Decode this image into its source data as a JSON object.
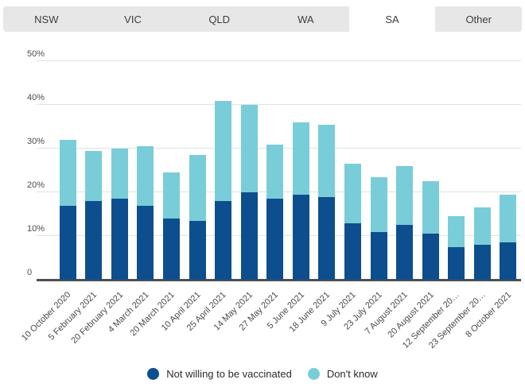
{
  "tabs": {
    "items": [
      {
        "label": "NSW",
        "active": false
      },
      {
        "label": "VIC",
        "active": false
      },
      {
        "label": "QLD",
        "active": false
      },
      {
        "label": "WA",
        "active": false
      },
      {
        "label": "SA",
        "active": true
      },
      {
        "label": "Other",
        "active": false
      }
    ]
  },
  "chart_data": {
    "type": "bar",
    "stacked": true,
    "categories": [
      "10 October 2020",
      "5 February 2021",
      "20 February 2021",
      "4 March 2021",
      "20 March 2021",
      "10 April 2021",
      "25 April 2021",
      "14 May 2021",
      "27 May 2021",
      "5 June 2021",
      "18 June 2021",
      "9 July 2021",
      "23 July 2021",
      "7 August 2021",
      "20 August 2021",
      "12 September 20…",
      "23 September 20…",
      "8 October 2021"
    ],
    "series": [
      {
        "name": "Not willing to be vaccinated",
        "color": "#0d4f8e",
        "values": [
          17,
          18,
          18.5,
          17,
          14,
          13.5,
          18,
          20,
          18.5,
          19.5,
          19,
          13,
          11,
          12.5,
          10.5,
          7.5,
          8,
          8.5
        ]
      },
      {
        "name": "Don't know",
        "color": "#79cdd8",
        "values": [
          15,
          11.5,
          11.5,
          13.5,
          10.5,
          15,
          23,
          20,
          12.5,
          16.5,
          16.5,
          13.5,
          12.5,
          13.5,
          12,
          7,
          8.5,
          11
        ]
      }
    ],
    "unit": "%",
    "y_ticks": [
      "50%",
      "40%",
      "30%",
      "20%",
      "10%",
      "0"
    ],
    "ylim": [
      0,
      50
    ],
    "grid": true,
    "legend_position": "bottom"
  },
  "colors": {
    "tab_bar_bg": "#e7e7e7",
    "tab_active_bg": "#ffffff",
    "tab_text": "#3d3d3d",
    "grid_line": "#e2e2e2",
    "axis_line": "#4f4f4f",
    "tick_text": "#4d4d4d",
    "legend_text": "#2b2b2b"
  }
}
